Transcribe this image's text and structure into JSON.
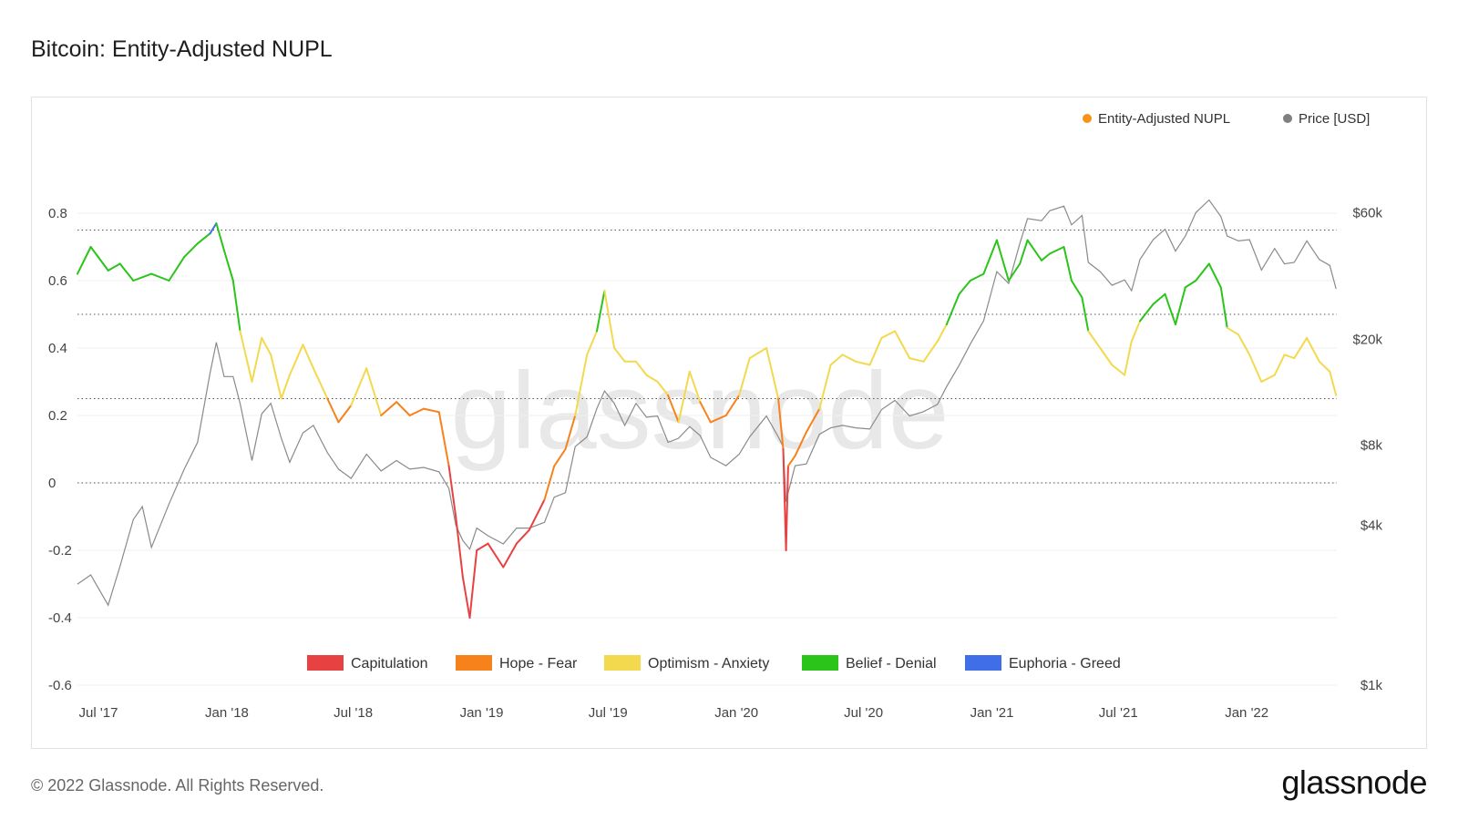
{
  "page": {
    "title": "Bitcoin: Entity-Adjusted NUPL",
    "footer": "© 2022 Glassnode. All Rights Reserved.",
    "brand": "glassnode",
    "watermark": "glassnode"
  },
  "chart_data": {
    "type": "line",
    "title": "Bitcoin: Entity-Adjusted NUPL",
    "legend": {
      "placement": "top-right",
      "series": [
        {
          "name": "Entity-Adjusted NUPL",
          "color": "#f7931a"
        },
        {
          "name": "Price [USD]",
          "color": "#808080"
        }
      ]
    },
    "zones": [
      {
        "name": "Capitulation",
        "color": "#e84142",
        "range": [
          -1.0,
          0.0
        ]
      },
      {
        "name": "Hope - Fear",
        "color": "#f7811a",
        "range": [
          0.0,
          0.25
        ]
      },
      {
        "name": "Optimism - Anxiety",
        "color": "#f2d94e",
        "range": [
          0.25,
          0.5
        ]
      },
      {
        "name": "Belief - Denial",
        "color": "#2bc41a",
        "range": [
          0.5,
          0.75
        ]
      },
      {
        "name": "Euphoria - Greed",
        "color": "#3f6ee8",
        "range": [
          0.75,
          1.0
        ]
      }
    ],
    "x_ticks": [
      "Jul '17",
      "Jan '18",
      "Jul '18",
      "Jan '19",
      "Jul '19",
      "Jan '20",
      "Jul '20",
      "Jan '21",
      "Jul '21",
      "Jan '22"
    ],
    "x_tick_dates": [
      "2017-07-01",
      "2018-01-01",
      "2018-07-01",
      "2019-01-01",
      "2019-07-01",
      "2020-01-01",
      "2020-07-01",
      "2021-01-01",
      "2021-07-01",
      "2022-01-01"
    ],
    "x_range": [
      "2017-06-01",
      "2022-05-10"
    ],
    "y_left": {
      "ticks": [
        0.8,
        0.6,
        0.4,
        0.2,
        0,
        -0.2,
        -0.4,
        -0.6
      ],
      "tick_labels": [
        "0.8",
        "0.6",
        "0.4",
        "0.2",
        "0",
        "-0.2",
        "-0.4",
        "-0.6"
      ],
      "range": [
        -0.6,
        0.9
      ]
    },
    "y_right": {
      "scale": "log",
      "ticks": [
        60000,
        20000,
        8000,
        4000,
        1000
      ],
      "tick_labels": [
        "$60k",
        "$20k",
        "$8k",
        "$4k",
        "$1k"
      ],
      "range": [
        1000,
        80000
      ]
    },
    "reference_lines": [
      0.75,
      0.5,
      0.25,
      0
    ],
    "nupl": {
      "x": [
        "2017-06-01",
        "2017-06-20",
        "2017-07-15",
        "2017-08-01",
        "2017-08-20",
        "2017-09-15",
        "2017-10-10",
        "2017-11-01",
        "2017-11-20",
        "2017-12-08",
        "2017-12-17",
        "2017-12-28",
        "2018-01-10",
        "2018-01-20",
        "2018-02-06",
        "2018-02-20",
        "2018-03-05",
        "2018-03-20",
        "2018-04-01",
        "2018-04-20",
        "2018-05-05",
        "2018-05-25",
        "2018-06-10",
        "2018-06-28",
        "2018-07-20",
        "2018-08-10",
        "2018-09-01",
        "2018-09-20",
        "2018-10-10",
        "2018-11-01",
        "2018-11-15",
        "2018-11-25",
        "2018-12-05",
        "2018-12-15",
        "2018-12-25",
        "2019-01-10",
        "2019-02-01",
        "2019-02-20",
        "2019-03-10",
        "2019-04-01",
        "2019-04-15",
        "2019-05-01",
        "2019-05-15",
        "2019-06-01",
        "2019-06-15",
        "2019-06-26",
        "2019-07-10",
        "2019-07-25",
        "2019-08-10",
        "2019-08-25",
        "2019-09-10",
        "2019-09-25",
        "2019-10-10",
        "2019-10-26",
        "2019-11-10",
        "2019-11-25",
        "2019-12-17",
        "2020-01-05",
        "2020-01-20",
        "2020-02-13",
        "2020-03-01",
        "2020-03-08",
        "2020-03-12",
        "2020-03-15",
        "2020-03-25",
        "2020-04-10",
        "2020-04-29",
        "2020-05-15",
        "2020-06-01",
        "2020-06-20",
        "2020-07-10",
        "2020-07-27",
        "2020-08-15",
        "2020-09-05",
        "2020-09-25",
        "2020-10-15",
        "2020-10-28",
        "2020-11-15",
        "2020-12-01",
        "2020-12-20",
        "2021-01-08",
        "2021-01-25",
        "2021-02-10",
        "2021-02-21",
        "2021-03-13",
        "2021-03-25",
        "2021-04-14",
        "2021-04-25",
        "2021-05-10",
        "2021-05-19",
        "2021-06-05",
        "2021-06-22",
        "2021-07-10",
        "2021-07-20",
        "2021-08-01",
        "2021-08-20",
        "2021-09-06",
        "2021-09-21",
        "2021-10-05",
        "2021-10-20",
        "2021-11-08",
        "2021-11-25",
        "2021-12-04",
        "2021-12-20",
        "2022-01-05",
        "2022-01-22",
        "2022-02-10",
        "2022-02-24",
        "2022-03-10",
        "2022-03-28",
        "2022-04-15",
        "2022-04-30",
        "2022-05-09"
      ],
      "y": [
        0.62,
        0.7,
        0.63,
        0.65,
        0.6,
        0.62,
        0.6,
        0.67,
        0.71,
        0.74,
        0.77,
        0.69,
        0.6,
        0.45,
        0.3,
        0.43,
        0.38,
        0.25,
        0.32,
        0.41,
        0.34,
        0.25,
        0.18,
        0.23,
        0.34,
        0.2,
        0.24,
        0.2,
        0.22,
        0.21,
        0.05,
        -0.1,
        -0.28,
        -0.4,
        -0.2,
        -0.18,
        -0.25,
        -0.18,
        -0.14,
        -0.05,
        0.05,
        0.1,
        0.2,
        0.38,
        0.45,
        0.57,
        0.4,
        0.36,
        0.36,
        0.32,
        0.3,
        0.26,
        0.18,
        0.33,
        0.24,
        0.18,
        0.2,
        0.26,
        0.37,
        0.4,
        0.25,
        0.1,
        -0.2,
        0.05,
        0.08,
        0.15,
        0.22,
        0.35,
        0.38,
        0.36,
        0.35,
        0.43,
        0.45,
        0.37,
        0.36,
        0.42,
        0.47,
        0.56,
        0.6,
        0.62,
        0.72,
        0.6,
        0.65,
        0.72,
        0.66,
        0.68,
        0.7,
        0.6,
        0.55,
        0.45,
        0.4,
        0.35,
        0.32,
        0.42,
        0.48,
        0.53,
        0.56,
        0.47,
        0.58,
        0.6,
        0.65,
        0.58,
        0.46,
        0.44,
        0.38,
        0.3,
        0.32,
        0.38,
        0.37,
        0.43,
        0.36,
        0.33,
        0.26
      ]
    },
    "price": {
      "x": [
        "2017-06-01",
        "2017-06-20",
        "2017-07-15",
        "2017-08-01",
        "2017-08-20",
        "2017-09-02",
        "2017-09-15",
        "2017-10-10",
        "2017-11-01",
        "2017-11-20",
        "2017-12-08",
        "2017-12-17",
        "2017-12-28",
        "2018-01-10",
        "2018-01-20",
        "2018-02-06",
        "2018-02-20",
        "2018-03-05",
        "2018-03-20",
        "2018-04-01",
        "2018-04-20",
        "2018-05-05",
        "2018-05-25",
        "2018-06-10",
        "2018-06-28",
        "2018-07-20",
        "2018-08-10",
        "2018-09-01",
        "2018-09-20",
        "2018-10-10",
        "2018-11-01",
        "2018-11-15",
        "2018-11-25",
        "2018-12-05",
        "2018-12-15",
        "2018-12-25",
        "2019-01-10",
        "2019-02-01",
        "2019-02-20",
        "2019-03-10",
        "2019-04-01",
        "2019-04-15",
        "2019-05-01",
        "2019-05-15",
        "2019-06-01",
        "2019-06-15",
        "2019-06-26",
        "2019-07-10",
        "2019-07-25",
        "2019-08-10",
        "2019-08-25",
        "2019-09-10",
        "2019-09-25",
        "2019-10-10",
        "2019-10-26",
        "2019-11-10",
        "2019-11-25",
        "2019-12-17",
        "2020-01-05",
        "2020-01-20",
        "2020-02-13",
        "2020-03-01",
        "2020-03-08",
        "2020-03-12",
        "2020-03-15",
        "2020-03-25",
        "2020-04-10",
        "2020-04-29",
        "2020-05-15",
        "2020-06-01",
        "2020-06-20",
        "2020-07-10",
        "2020-07-27",
        "2020-08-15",
        "2020-09-05",
        "2020-09-25",
        "2020-10-15",
        "2020-10-28",
        "2020-11-15",
        "2020-12-01",
        "2020-12-20",
        "2021-01-08",
        "2021-01-25",
        "2021-02-10",
        "2021-02-21",
        "2021-03-13",
        "2021-03-25",
        "2021-04-14",
        "2021-04-25",
        "2021-05-10",
        "2021-05-19",
        "2021-06-05",
        "2021-06-22",
        "2021-07-10",
        "2021-07-20",
        "2021-08-01",
        "2021-08-20",
        "2021-09-06",
        "2021-09-21",
        "2021-10-05",
        "2021-10-20",
        "2021-11-08",
        "2021-11-25",
        "2021-12-04",
        "2021-12-20",
        "2022-01-05",
        "2022-01-22",
        "2022-02-10",
        "2022-02-24",
        "2022-03-10",
        "2022-03-28",
        "2022-04-15",
        "2022-04-30",
        "2022-05-09"
      ],
      "y": [
        2400,
        2600,
        2000,
        2800,
        4200,
        4700,
        3300,
        4800,
        6500,
        8200,
        15000,
        19500,
        14500,
        14500,
        11500,
        7000,
        10500,
        11500,
        8500,
        6900,
        8900,
        9500,
        7500,
        6500,
        6000,
        7400,
        6400,
        7000,
        6500,
        6600,
        6350,
        5500,
        4000,
        3500,
        3250,
        3900,
        3650,
        3400,
        3900,
        3900,
        4100,
        5100,
        5300,
        7900,
        8600,
        11000,
        12800,
        11500,
        9500,
        11500,
        10200,
        10300,
        8200,
        8500,
        9400,
        8700,
        7200,
        6700,
        7400,
        8600,
        10300,
        8600,
        7900,
        4900,
        5300,
        6700,
        6800,
        8800,
        9300,
        9500,
        9300,
        9200,
        10900,
        11800,
        10300,
        10700,
        11400,
        13300,
        16000,
        19200,
        23500,
        36000,
        32500,
        46000,
        57000,
        56000,
        61000,
        63500,
        54000,
        58500,
        39000,
        36000,
        32000,
        33500,
        30500,
        40000,
        47500,
        52000,
        43000,
        49000,
        60000,
        67000,
        58000,
        49000,
        47000,
        47500,
        36500,
        44000,
        38500,
        39000,
        47000,
        40000,
        38000,
        31000
      ]
    }
  }
}
